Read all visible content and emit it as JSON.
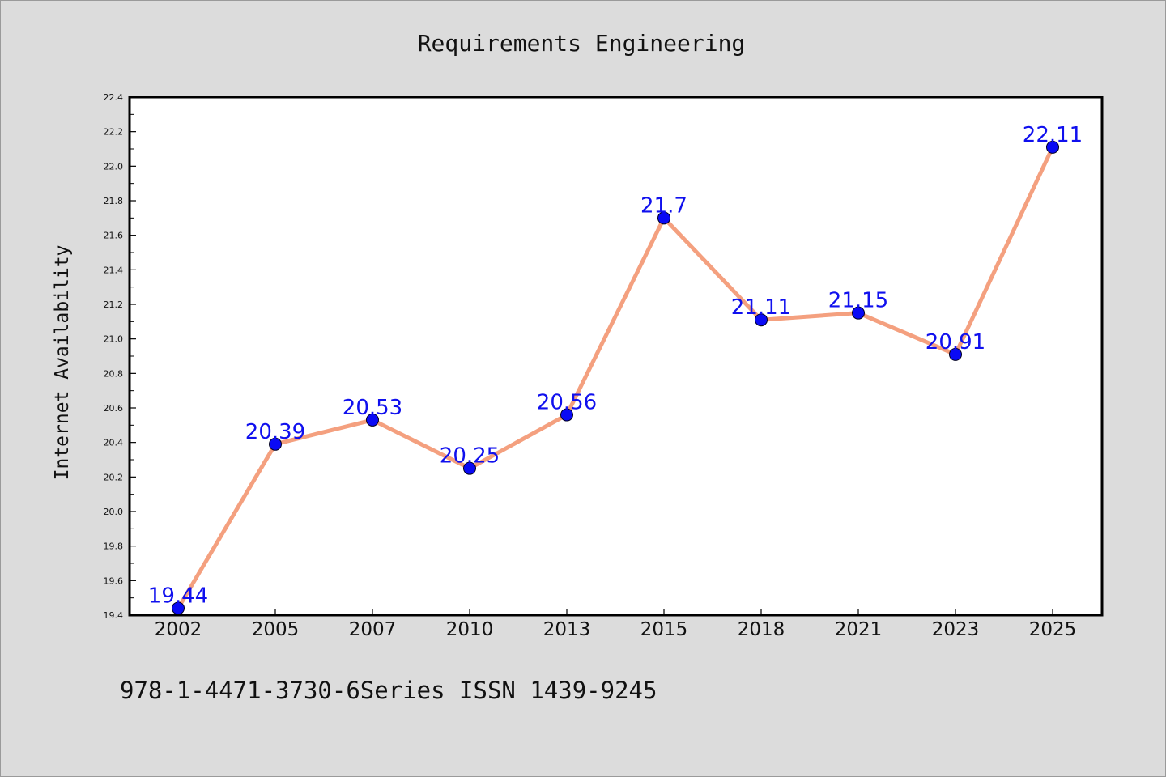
{
  "chart_data": {
    "type": "line",
    "title": "Requirements Engineering",
    "xlabel": "",
    "ylabel": "Internet Availability",
    "categories": [
      "2002",
      "2005",
      "2007",
      "2010",
      "2013",
      "2015",
      "2018",
      "2021",
      "2023",
      "2025"
    ],
    "series": [
      {
        "values": [
          19.44,
          20.39,
          20.53,
          20.25,
          20.56,
          21.7,
          21.11,
          21.15,
          20.91,
          22.11
        ],
        "data_labels": [
          "19.44",
          "20.39",
          "20.53",
          "20.25",
          "20.56",
          "21.7",
          "21.11",
          "21.15",
          "20.91",
          "22.11"
        ]
      }
    ],
    "ylim": [
      19.4,
      22.4
    ],
    "yticks": [
      "19.4",
      "19.6",
      "19.8",
      "20.0",
      "20.2",
      "20.4",
      "20.6",
      "20.8",
      "21.0",
      "21.2",
      "21.4",
      "21.6",
      "21.8",
      "22.0",
      "22.2",
      "22.4"
    ],
    "grid": false,
    "legend": "none",
    "colors": {
      "line": "#f4a07f",
      "marker": "#0a0af5",
      "label": "#1010ee",
      "background": "#dcdcdc",
      "plot_area": "#ffffff"
    }
  },
  "footnote": "978-1-4471-3730-6Series ISSN 1439-9245"
}
